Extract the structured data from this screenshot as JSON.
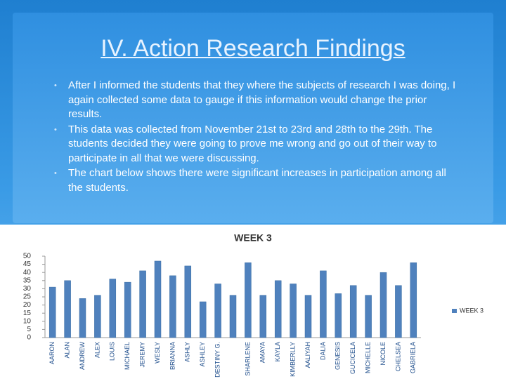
{
  "slide": {
    "title": "IV. Action Research Findings",
    "bullets": [
      "After I informed the students that they where the subjects of research I was doing, I again collected some data to gauge if this information would change the prior results.",
      "This data was collected from November 21st to 23rd and 28th to the 29th. The students decided they were going to prove me wrong and go out of their way to participate in all that we were discussing.",
      "The chart below shows there were significant increases in participation among all the students."
    ]
  },
  "chart_data": {
    "type": "bar",
    "title": "WEEK 3",
    "categories": [
      "AARON",
      "ALAN",
      "ANDREW",
      "ALEX",
      "LOUIS",
      "MICHAEL",
      "JEREMY",
      "WESLY",
      "BRIANNA",
      "ASHLY",
      "ASHLEY",
      "DESTINY G.",
      null,
      "SHARLENE",
      "AMAYA",
      "KAYLA",
      "KIMBERLLY",
      "AALIYAH",
      "DALIA",
      "GENESIS",
      "GUCICELA",
      "MICHELLE",
      "NICOLE",
      "CHELSEA",
      "GABRIELA"
    ],
    "series": [
      {
        "name": "WEEK 3",
        "color": "#4f81bd",
        "values": [
          31,
          35,
          24,
          26,
          36,
          34,
          41,
          47,
          38,
          44,
          22,
          33,
          26,
          46,
          26,
          35,
          33,
          26,
          41,
          27,
          32,
          26,
          40,
          32,
          46
        ]
      }
    ],
    "ylim": [
      0,
      50
    ],
    "yticks": [
      0,
      5,
      10,
      15,
      20,
      25,
      30,
      35,
      40,
      45,
      50
    ],
    "grid": false,
    "legend": "right"
  }
}
